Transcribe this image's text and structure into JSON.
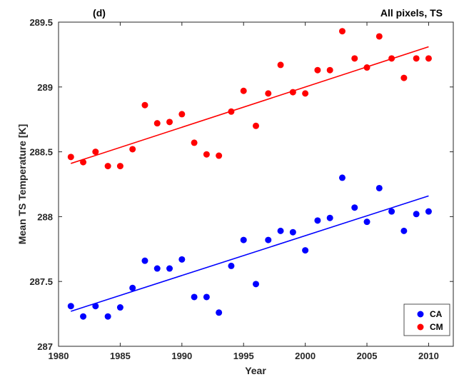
{
  "chart_data": {
    "type": "scatter",
    "panel_label": "(d)",
    "title": "All pixels, TS",
    "xlabel": "Year",
    "ylabel": "Mean TS Temperature [K]",
    "xlim": [
      1980,
      2012
    ],
    "ylim": [
      287,
      289.5
    ],
    "xticks": [
      1980,
      1985,
      1990,
      1995,
      2000,
      2005,
      2010
    ],
    "yticks": [
      287,
      287.5,
      288,
      288.5,
      289,
      289.5
    ],
    "xtick_labels": [
      "1980",
      "1985",
      "1990",
      "1995",
      "2000",
      "2005",
      "2010"
    ],
    "ytick_labels": [
      "287",
      "287.5",
      "288",
      "288.5",
      "289",
      "289.5"
    ],
    "grid": false,
    "legend_position": "bottom-right",
    "series": [
      {
        "name": "CA",
        "color": "#0000ff",
        "x": [
          1981,
          1982,
          1983,
          1984,
          1985,
          1986,
          1987,
          1988,
          1989,
          1990,
          1991,
          1992,
          1993,
          1994,
          1995,
          1996,
          1997,
          1998,
          1999,
          2000,
          2001,
          2002,
          2003,
          2004,
          2005,
          2006,
          2007,
          2008,
          2009,
          2010
        ],
        "y": [
          287.31,
          287.23,
          287.31,
          287.23,
          287.3,
          287.45,
          287.66,
          287.6,
          287.6,
          287.67,
          287.38,
          287.38,
          287.26,
          287.62,
          287.82,
          287.48,
          287.82,
          287.89,
          287.88,
          287.74,
          287.97,
          287.99,
          288.3,
          288.07,
          287.96,
          288.22,
          288.04,
          287.89,
          288.02,
          288.04
        ],
        "trend": {
          "x": [
            1981,
            2010
          ],
          "y": [
            287.27,
            288.16
          ]
        }
      },
      {
        "name": "CM",
        "color": "#ff0000",
        "x": [
          1981,
          1982,
          1983,
          1984,
          1985,
          1986,
          1987,
          1988,
          1989,
          1990,
          1991,
          1992,
          1993,
          1994,
          1995,
          1996,
          1997,
          1998,
          1999,
          2000,
          2001,
          2002,
          2003,
          2004,
          2005,
          2006,
          2007,
          2008,
          2009,
          2010
        ],
        "y": [
          288.46,
          288.42,
          288.5,
          288.39,
          288.39,
          288.52,
          288.86,
          288.72,
          288.73,
          288.79,
          288.57,
          288.48,
          288.47,
          288.81,
          288.97,
          288.7,
          288.95,
          289.17,
          288.96,
          288.95,
          289.13,
          289.13,
          289.43,
          289.22,
          289.15,
          289.39,
          289.22,
          289.07,
          289.22,
          289.22
        ],
        "trend": {
          "x": [
            1981,
            2010
          ],
          "y": [
            288.41,
            289.31
          ]
        }
      }
    ]
  }
}
